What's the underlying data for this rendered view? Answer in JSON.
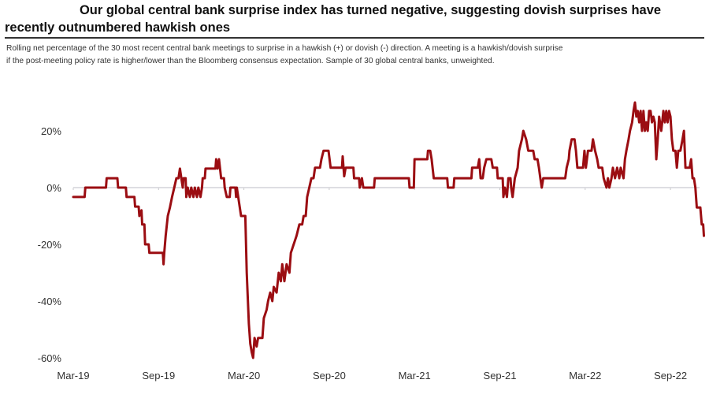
{
  "chart_data": {
    "type": "line",
    "title_line1": "Our global central bank surprise index has turned negative, suggesting dovish surprises have",
    "title_line2": "recently outnumbered hawkish ones",
    "subtitle_line1": "Rolling net percentage of the 30 most recent central bank meetings to surprise in a hawkish (+) or dovish (-) direction. A meeting is a hawkish/dovish surprise",
    "subtitle_line2": "if the post-meeting policy rate is higher/lower than the Bloomberg consensus expectation. Sample of 30 global central banks, unweighted.",
    "xlabel": "",
    "ylabel": "",
    "ylim": [
      -60,
      30
    ],
    "x_unit": "months since Mar-19",
    "xlim": [
      0,
      44.5
    ],
    "y_ticks": [
      {
        "value": 20,
        "label": "20%"
      },
      {
        "value": 0,
        "label": "0%"
      },
      {
        "value": -20,
        "label": "-20%"
      },
      {
        "value": -40,
        "label": "-40%"
      },
      {
        "value": -60,
        "label": "-60%"
      }
    ],
    "x_ticks": [
      {
        "value": 0,
        "label": "Mar-19"
      },
      {
        "value": 6,
        "label": "Sep-19"
      },
      {
        "value": 12,
        "label": "Mar-20"
      },
      {
        "value": 18,
        "label": "Sep-20"
      },
      {
        "value": 24,
        "label": "Mar-21"
      },
      {
        "value": 30,
        "label": "Sep-21"
      },
      {
        "value": 36,
        "label": "Mar-22"
      },
      {
        "value": 42,
        "label": "Sep-22"
      }
    ],
    "zero_line": true,
    "grid": false,
    "legend": "none",
    "series": [
      {
        "name": "Global central bank surprise index",
        "color": "#9b0d12",
        "points": [
          [
            0.0,
            -3.3
          ],
          [
            0.8,
            -3.3
          ],
          [
            0.85,
            0
          ],
          [
            2.3,
            0
          ],
          [
            2.35,
            3.3
          ],
          [
            3.1,
            3.3
          ],
          [
            3.15,
            0
          ],
          [
            3.7,
            0
          ],
          [
            3.75,
            -3.3
          ],
          [
            4.3,
            -3.3
          ],
          [
            4.35,
            -6.7
          ],
          [
            4.6,
            -6.7
          ],
          [
            4.65,
            -10
          ],
          [
            4.8,
            -8
          ],
          [
            4.85,
            -13
          ],
          [
            5.0,
            -13
          ],
          [
            5.05,
            -20
          ],
          [
            5.3,
            -20
          ],
          [
            5.35,
            -23
          ],
          [
            6.3,
            -23
          ],
          [
            6.35,
            -27
          ],
          [
            6.4,
            -23
          ],
          [
            6.5,
            -17
          ],
          [
            6.65,
            -10
          ],
          [
            6.8,
            -7
          ],
          [
            6.95,
            -3.3
          ],
          [
            7.1,
            0
          ],
          [
            7.25,
            3.3
          ],
          [
            7.4,
            3.3
          ],
          [
            7.5,
            6.7
          ],
          [
            7.6,
            3.3
          ],
          [
            7.7,
            0
          ],
          [
            7.75,
            3.3
          ],
          [
            7.9,
            3.3
          ],
          [
            7.95,
            -3.3
          ],
          [
            8.05,
            0
          ],
          [
            8.2,
            -3.3
          ],
          [
            8.3,
            0
          ],
          [
            8.45,
            -3.3
          ],
          [
            8.55,
            0
          ],
          [
            8.7,
            -3.3
          ],
          [
            8.8,
            0
          ],
          [
            8.95,
            -3.3
          ],
          [
            9.05,
            0
          ],
          [
            9.1,
            3.3
          ],
          [
            9.25,
            3.3
          ],
          [
            9.3,
            6.7
          ],
          [
            10.0,
            6.7
          ],
          [
            10.05,
            10
          ],
          [
            10.15,
            6.7
          ],
          [
            10.25,
            10
          ],
          [
            10.4,
            3.3
          ],
          [
            10.6,
            3.3
          ],
          [
            10.65,
            0
          ],
          [
            10.8,
            -3.3
          ],
          [
            11.0,
            -3.3
          ],
          [
            11.05,
            0
          ],
          [
            11.4,
            0
          ],
          [
            11.45,
            -3.3
          ],
          [
            11.5,
            0
          ],
          [
            11.6,
            -3.3
          ],
          [
            11.8,
            -10
          ],
          [
            12.1,
            -10
          ],
          [
            12.15,
            -20
          ],
          [
            12.2,
            -30
          ],
          [
            12.35,
            -48
          ],
          [
            12.45,
            -55
          ],
          [
            12.55,
            -58
          ],
          [
            12.65,
            -60
          ],
          [
            12.75,
            -53
          ],
          [
            12.9,
            -56
          ],
          [
            13.0,
            -53
          ],
          [
            13.3,
            -53
          ],
          [
            13.4,
            -46
          ],
          [
            13.6,
            -43
          ],
          [
            13.7,
            -40
          ],
          [
            13.85,
            -37
          ],
          [
            14.0,
            -40
          ],
          [
            14.1,
            -35
          ],
          [
            14.3,
            -37
          ],
          [
            14.45,
            -30
          ],
          [
            14.6,
            -33
          ],
          [
            14.7,
            -27
          ],
          [
            14.85,
            -33
          ],
          [
            15.0,
            -27
          ],
          [
            15.2,
            -30
          ],
          [
            15.3,
            -23
          ],
          [
            15.5,
            -20
          ],
          [
            15.7,
            -17
          ],
          [
            15.9,
            -13
          ],
          [
            16.1,
            -13
          ],
          [
            16.2,
            -10
          ],
          [
            16.35,
            -10
          ],
          [
            16.45,
            -3.3
          ],
          [
            16.6,
            0
          ],
          [
            16.75,
            3.3
          ],
          [
            16.9,
            3.3
          ],
          [
            17.0,
            7
          ],
          [
            17.35,
            7
          ],
          [
            17.45,
            10
          ],
          [
            17.6,
            13
          ],
          [
            17.95,
            13
          ],
          [
            18.1,
            7
          ],
          [
            18.9,
            7
          ],
          [
            18.95,
            11
          ],
          [
            19.05,
            4
          ],
          [
            19.15,
            7
          ],
          [
            19.7,
            7
          ],
          [
            19.75,
            3.3
          ],
          [
            20.1,
            3.3
          ],
          [
            20.15,
            0
          ],
          [
            20.3,
            3.3
          ],
          [
            20.4,
            0
          ],
          [
            21.15,
            0
          ],
          [
            21.2,
            3.3
          ],
          [
            23.6,
            3.3
          ],
          [
            23.65,
            0
          ],
          [
            23.95,
            0
          ],
          [
            24.0,
            10
          ],
          [
            24.9,
            10
          ],
          [
            24.95,
            13
          ],
          [
            25.1,
            13
          ],
          [
            25.2,
            10
          ],
          [
            25.35,
            3.3
          ],
          [
            26.3,
            3.3
          ],
          [
            26.35,
            0
          ],
          [
            26.75,
            0
          ],
          [
            26.8,
            3.3
          ],
          [
            28.0,
            3.3
          ],
          [
            28.05,
            7
          ],
          [
            28.45,
            7
          ],
          [
            28.55,
            10
          ],
          [
            28.65,
            3.3
          ],
          [
            28.8,
            3.3
          ],
          [
            28.9,
            7
          ],
          [
            29.05,
            10
          ],
          [
            29.4,
            10
          ],
          [
            29.5,
            7
          ],
          [
            29.8,
            7
          ],
          [
            29.85,
            3.3
          ],
          [
            30.2,
            3.3
          ],
          [
            30.25,
            -3.3
          ],
          [
            30.35,
            0
          ],
          [
            30.5,
            -3.3
          ],
          [
            30.6,
            3.3
          ],
          [
            30.75,
            3.3
          ],
          [
            30.8,
            0
          ],
          [
            30.9,
            -3.3
          ],
          [
            31.05,
            3.3
          ],
          [
            31.25,
            7
          ],
          [
            31.35,
            13
          ],
          [
            31.55,
            17
          ],
          [
            31.65,
            20
          ],
          [
            31.85,
            17
          ],
          [
            32.0,
            13
          ],
          [
            32.35,
            13
          ],
          [
            32.45,
            10
          ],
          [
            32.65,
            10
          ],
          [
            32.75,
            7
          ],
          [
            32.85,
            3.3
          ],
          [
            32.95,
            0
          ],
          [
            33.05,
            3.3
          ],
          [
            34.6,
            3.3
          ],
          [
            34.7,
            7
          ],
          [
            34.85,
            10
          ],
          [
            34.9,
            13
          ],
          [
            35.05,
            17
          ],
          [
            35.25,
            17
          ],
          [
            35.35,
            13
          ],
          [
            35.45,
            7
          ],
          [
            35.85,
            7
          ],
          [
            35.95,
            13
          ],
          [
            36.05,
            7
          ],
          [
            36.2,
            13
          ],
          [
            36.45,
            13
          ],
          [
            36.55,
            17
          ],
          [
            36.7,
            13
          ],
          [
            36.85,
            10
          ],
          [
            36.95,
            7
          ],
          [
            37.2,
            7
          ],
          [
            37.3,
            3.3
          ],
          [
            37.5,
            0
          ],
          [
            37.6,
            3.3
          ],
          [
            37.7,
            0
          ],
          [
            37.85,
            3.3
          ],
          [
            37.95,
            7
          ],
          [
            38.1,
            3.3
          ],
          [
            38.25,
            7
          ],
          [
            38.4,
            3.3
          ],
          [
            38.5,
            7
          ],
          [
            38.7,
            3.3
          ],
          [
            38.8,
            10
          ],
          [
            38.9,
            13
          ],
          [
            39.05,
            17
          ],
          [
            39.15,
            20
          ],
          [
            39.3,
            23
          ],
          [
            39.4,
            27
          ],
          [
            39.5,
            30
          ],
          [
            39.6,
            25
          ],
          [
            39.7,
            27
          ],
          [
            39.8,
            23
          ],
          [
            39.9,
            27
          ],
          [
            40.0,
            20
          ],
          [
            40.1,
            27
          ],
          [
            40.2,
            20
          ],
          [
            40.3,
            23
          ],
          [
            40.4,
            20
          ],
          [
            40.5,
            27
          ],
          [
            40.6,
            27
          ],
          [
            40.7,
            23
          ],
          [
            40.8,
            25
          ],
          [
            40.9,
            23
          ],
          [
            41.0,
            10
          ],
          [
            41.1,
            17
          ],
          [
            41.2,
            25
          ],
          [
            41.35,
            20
          ],
          [
            41.5,
            27
          ],
          [
            41.6,
            23
          ],
          [
            41.7,
            27
          ],
          [
            41.8,
            23
          ],
          [
            41.9,
            27
          ],
          [
            42.0,
            25
          ],
          [
            42.1,
            17
          ],
          [
            42.2,
            13
          ],
          [
            42.35,
            13
          ],
          [
            42.45,
            7
          ],
          [
            42.55,
            13
          ],
          [
            42.7,
            13
          ],
          [
            42.85,
            17
          ],
          [
            42.95,
            20
          ],
          [
            43.05,
            7
          ],
          [
            43.2,
            7
          ],
          [
            43.35,
            7
          ],
          [
            43.45,
            10
          ],
          [
            43.55,
            3.3
          ],
          [
            43.65,
            3.3
          ],
          [
            43.75,
            0
          ],
          [
            43.85,
            -7
          ],
          [
            44.1,
            -7
          ],
          [
            44.2,
            -13
          ],
          [
            44.3,
            -13
          ],
          [
            44.35,
            -17
          ]
        ]
      }
    ]
  }
}
